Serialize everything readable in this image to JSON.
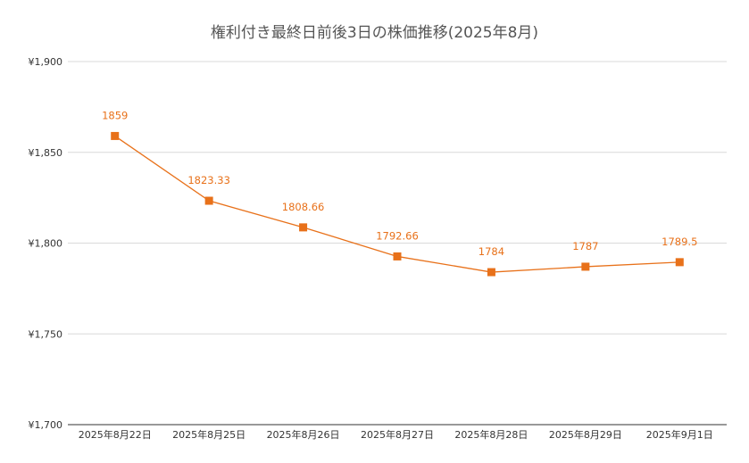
{
  "chart_data": {
    "type": "line",
    "title": "権利付き最終日前後3日の株価推移(2025年8月)",
    "xlabel": "",
    "ylabel": "",
    "categories": [
      "2025年8月22日",
      "2025年8月25日",
      "2025年8月26日",
      "2025年8月27日",
      "2025年8月28日",
      "2025年8月29日",
      "2025年9月1日"
    ],
    "series": [
      {
        "values": [
          1859,
          1823.33,
          1808.66,
          1792.66,
          1784,
          1787,
          1789.5
        ],
        "labels": [
          "1859",
          "1823.33",
          "1808.66",
          "1792.66",
          "1784",
          "1787",
          "1789.5"
        ]
      }
    ],
    "ylim": [
      1700,
      1900
    ],
    "yticks": [
      1700,
      1750,
      1800,
      1850,
      1900
    ],
    "ytick_labels": [
      "¥1,700",
      "¥1,750",
      "¥1,800",
      "¥1,850",
      "¥1,900"
    ],
    "grid": true,
    "legend": "none",
    "colors": {
      "series": "#E8711A",
      "grid": "#d9d9d9",
      "axis": "#333333",
      "title": "#555555"
    }
  }
}
